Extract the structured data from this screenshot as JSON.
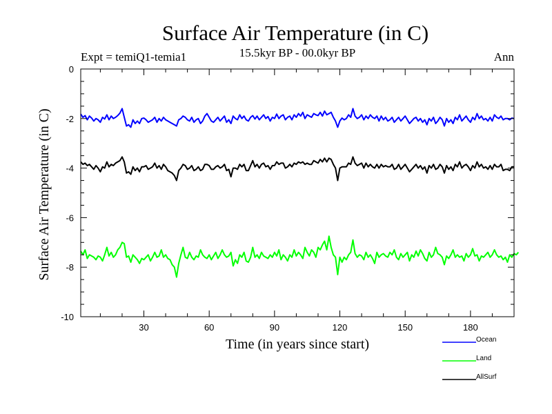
{
  "chart_data": {
    "type": "line",
    "title": "Surface Air Temperature (in C)",
    "subtitle_left": "Expt = temiQ1-temia1",
    "subtitle_center": "15.5kyr BP - 00.0kyr BP",
    "subtitle_right": "Ann",
    "xlabel": "Time (in years since start)",
    "ylabel": "Surface Air Temperature (in C)",
    "xlim": [
      1,
      200
    ],
    "ylim": [
      -10,
      0
    ],
    "xticks": [
      30,
      60,
      90,
      120,
      150,
      180
    ],
    "yticks": [
      0,
      -2,
      -4,
      -6,
      -8,
      -10
    ],
    "legend_position": "bottom-right",
    "series": [
      {
        "name": "Ocean",
        "color": "#0000ff",
        "values": [
          -1.82,
          -1.95,
          -1.88,
          -2.05,
          -1.9,
          -1.98,
          -2.1,
          -2.0,
          -2.05,
          -2.15,
          -1.95,
          -2.02,
          -1.85,
          -2.05,
          -1.9,
          -2.0,
          -1.95,
          -1.88,
          -1.78,
          -1.6,
          -1.95,
          -2.3,
          -2.25,
          -2.35,
          -2.05,
          -2.2,
          -2.1,
          -2.2,
          -2.0,
          -1.98,
          -2.05,
          -2.15,
          -2.1,
          -2.05,
          -1.95,
          -2.15,
          -2.0,
          -2.1,
          -1.95,
          -2.05,
          -2.1,
          -2.15,
          -2.2,
          -2.25,
          -2.3,
          -2.05,
          -2.0,
          -1.9,
          -1.95,
          -2.05,
          -2.1,
          -1.95,
          -2.15,
          -2.05,
          -2.0,
          -2.2,
          -2.1,
          -1.9,
          -1.8,
          -1.95,
          -2.1,
          -2.15,
          -2.05,
          -1.95,
          -2.1,
          -2.0,
          -1.9,
          -2.15,
          -2.05,
          -2.2,
          -1.9,
          -2.0,
          -2.05,
          -1.85,
          -2.0,
          -1.9,
          -2.05,
          -2.1,
          -1.95,
          -1.88,
          -2.02,
          -1.9,
          -2.05,
          -1.95,
          -1.85,
          -2.0,
          -1.92,
          -2.1,
          -1.95,
          -2.0,
          -1.82,
          -2.0,
          -1.9,
          -1.85,
          -2.05,
          -1.95,
          -1.9,
          -2.05,
          -1.85,
          -1.95,
          -1.8,
          -1.9,
          -1.75,
          -2.0,
          -1.85,
          -1.9,
          -1.95,
          -1.8,
          -1.85,
          -1.88,
          -1.75,
          -1.9,
          -1.7,
          -1.85,
          -1.8,
          -1.75,
          -1.95,
          -2.1,
          -2.35,
          -2.1,
          -1.98,
          -2.05,
          -2.0,
          -1.85,
          -1.95,
          -1.6,
          -1.9,
          -2.0,
          -1.95,
          -1.85,
          -2.05,
          -1.9,
          -2.0,
          -1.85,
          -1.95,
          -2.0,
          -1.9,
          -2.1,
          -1.9,
          -2.05,
          -1.95,
          -2.1,
          -2.05,
          -1.95,
          -2.15,
          -2.05,
          -1.95,
          -2.1,
          -2.0,
          -1.9,
          -2.05,
          -2.2,
          -2.1,
          -2.0,
          -1.95,
          -2.1,
          -2.0,
          -2.15,
          -2.05,
          -2.25,
          -2.0,
          -2.1,
          -1.95,
          -2.2,
          -2.1,
          -1.95,
          -2.05,
          -2.3,
          -2.0,
          -2.15,
          -2.05,
          -2.2,
          -1.95,
          -2.05,
          -1.85,
          -2.1,
          -2.0,
          -1.9,
          -2.05,
          -2.15,
          -1.95,
          -2.05,
          -1.8,
          -2.0,
          -1.9,
          -2.05,
          -2.0,
          -2.1,
          -1.95,
          -2.1,
          -1.85,
          -1.95,
          -2.0,
          -1.9,
          -2.05,
          -2.0,
          -2.0,
          -2.05,
          -1.98,
          -2.0
        ],
        "legend_label": "Ocean"
      },
      {
        "name": "Land",
        "color": "#00ff00",
        "values": [
          -7.35,
          -7.5,
          -7.3,
          -7.65,
          -7.5,
          -7.55,
          -7.6,
          -7.7,
          -7.55,
          -7.6,
          -7.75,
          -7.5,
          -7.2,
          -7.55,
          -7.4,
          -7.6,
          -7.5,
          -7.3,
          -7.2,
          -7.0,
          -7.05,
          -7.6,
          -7.55,
          -7.8,
          -7.5,
          -7.6,
          -7.7,
          -7.85,
          -7.65,
          -7.7,
          -7.6,
          -7.5,
          -7.75,
          -7.6,
          -7.4,
          -7.6,
          -7.55,
          -7.3,
          -7.6,
          -7.5,
          -7.65,
          -7.7,
          -7.9,
          -8.0,
          -8.4,
          -7.85,
          -7.5,
          -7.2,
          -7.6,
          -7.65,
          -7.4,
          -7.6,
          -7.7,
          -7.55,
          -7.6,
          -7.3,
          -7.5,
          -7.6,
          -7.65,
          -7.5,
          -7.7,
          -7.55,
          -7.4,
          -7.65,
          -7.5,
          -7.3,
          -7.5,
          -7.6,
          -7.55,
          -7.4,
          -7.95,
          -7.7,
          -7.85,
          -7.5,
          -7.6,
          -7.4,
          -7.75,
          -7.8,
          -7.6,
          -7.2,
          -7.6,
          -7.5,
          -7.65,
          -7.4,
          -7.55,
          -7.6,
          -7.65,
          -7.5,
          -7.6,
          -7.4,
          -7.55,
          -7.3,
          -7.7,
          -7.5,
          -7.6,
          -7.75,
          -7.5,
          -7.6,
          -7.3,
          -7.55,
          -7.4,
          -7.5,
          -7.65,
          -7.2,
          -7.4,
          -7.55,
          -7.3,
          -7.4,
          -7.6,
          -7.2,
          -7.3,
          -7.1,
          -6.95,
          -7.3,
          -6.75,
          -7.2,
          -7.5,
          -7.6,
          -8.3,
          -7.6,
          -7.8,
          -7.6,
          -7.7,
          -7.5,
          -7.4,
          -6.9,
          -7.45,
          -7.6,
          -7.5,
          -7.55,
          -7.7,
          -7.4,
          -7.6,
          -7.5,
          -7.65,
          -7.85,
          -7.4,
          -7.6,
          -7.5,
          -7.45,
          -7.55,
          -7.6,
          -7.4,
          -7.5,
          -7.3,
          -7.6,
          -7.7,
          -7.45,
          -7.6,
          -7.5,
          -7.4,
          -7.75,
          -7.5,
          -7.6,
          -7.35,
          -7.55,
          -7.3,
          -7.45,
          -7.65,
          -7.75,
          -7.4,
          -7.6,
          -7.5,
          -7.2,
          -7.45,
          -7.5,
          -7.6,
          -7.9,
          -7.55,
          -7.65,
          -7.5,
          -7.3,
          -7.6,
          -7.5,
          -7.6,
          -7.55,
          -7.75,
          -7.45,
          -7.6,
          -7.5,
          -7.25,
          -7.55,
          -7.5,
          -7.75,
          -7.55,
          -7.6,
          -7.5,
          -7.4,
          -7.6,
          -7.5,
          -7.3,
          -7.5,
          -7.6,
          -7.55,
          -7.7,
          -7.6,
          -7.8,
          -7.5,
          -7.6,
          -7.45,
          -7.5,
          -7.4
        ],
        "legend_label": "Land"
      },
      {
        "name": "AllSurf",
        "color": "#000000",
        "values": [
          -3.75,
          -3.85,
          -3.8,
          -3.9,
          -3.85,
          -3.95,
          -4.05,
          -3.9,
          -4.0,
          -4.15,
          -3.95,
          -4.0,
          -3.75,
          -3.95,
          -3.85,
          -3.9,
          -3.8,
          -3.75,
          -3.7,
          -3.55,
          -3.75,
          -4.2,
          -4.15,
          -4.25,
          -3.95,
          -4.1,
          -4.0,
          -4.15,
          -3.95,
          -3.95,
          -3.9,
          -4.05,
          -4.0,
          -3.95,
          -3.8,
          -4.0,
          -3.9,
          -4.05,
          -3.85,
          -3.95,
          -4.1,
          -4.15,
          -4.2,
          -4.3,
          -4.5,
          -4.1,
          -4.0,
          -3.85,
          -3.9,
          -4.05,
          -4.0,
          -3.9,
          -4.1,
          -4.05,
          -3.95,
          -4.1,
          -4.05,
          -3.85,
          -3.85,
          -3.9,
          -4.05,
          -4.05,
          -3.95,
          -3.9,
          -4.0,
          -3.95,
          -3.85,
          -4.1,
          -4.05,
          -4.35,
          -4.0,
          -4.0,
          -4.05,
          -3.85,
          -3.95,
          -3.85,
          -4.1,
          -4.1,
          -3.9,
          -3.7,
          -3.95,
          -3.85,
          -4.0,
          -3.85,
          -3.8,
          -3.95,
          -3.9,
          -4.05,
          -3.9,
          -3.9,
          -3.75,
          -3.85,
          -3.8,
          -3.8,
          -4.0,
          -3.95,
          -3.85,
          -3.95,
          -3.8,
          -3.85,
          -3.75,
          -3.8,
          -3.75,
          -3.85,
          -3.8,
          -3.85,
          -3.85,
          -3.7,
          -3.75,
          -3.8,
          -3.65,
          -3.75,
          -3.6,
          -3.75,
          -3.6,
          -3.65,
          -3.85,
          -4.0,
          -4.5,
          -4.0,
          -3.95,
          -3.95,
          -3.95,
          -3.8,
          -3.85,
          -3.55,
          -3.8,
          -3.9,
          -3.85,
          -3.8,
          -4.0,
          -3.8,
          -3.95,
          -3.85,
          -3.95,
          -4.0,
          -3.85,
          -4.0,
          -3.85,
          -3.95,
          -3.9,
          -3.95,
          -3.95,
          -3.85,
          -4.05,
          -4.0,
          -3.85,
          -4.05,
          -3.95,
          -3.85,
          -4.0,
          -4.15,
          -4.05,
          -3.95,
          -3.85,
          -4.0,
          -3.9,
          -4.05,
          -3.95,
          -4.2,
          -3.9,
          -4.0,
          -3.85,
          -4.05,
          -4.0,
          -3.85,
          -3.95,
          -4.2,
          -3.9,
          -4.05,
          -3.95,
          -4.1,
          -3.85,
          -3.95,
          -3.75,
          -4.0,
          -3.9,
          -3.85,
          -3.95,
          -4.1,
          -3.9,
          -4.0,
          -3.75,
          -3.95,
          -3.85,
          -4.0,
          -3.95,
          -4.05,
          -3.9,
          -4.05,
          -3.85,
          -3.95,
          -3.95,
          -3.85,
          -4.1,
          -4.05,
          -4.05,
          -4.1,
          -3.95,
          -3.95
        ],
        "legend_label": "AllSurf"
      }
    ]
  }
}
